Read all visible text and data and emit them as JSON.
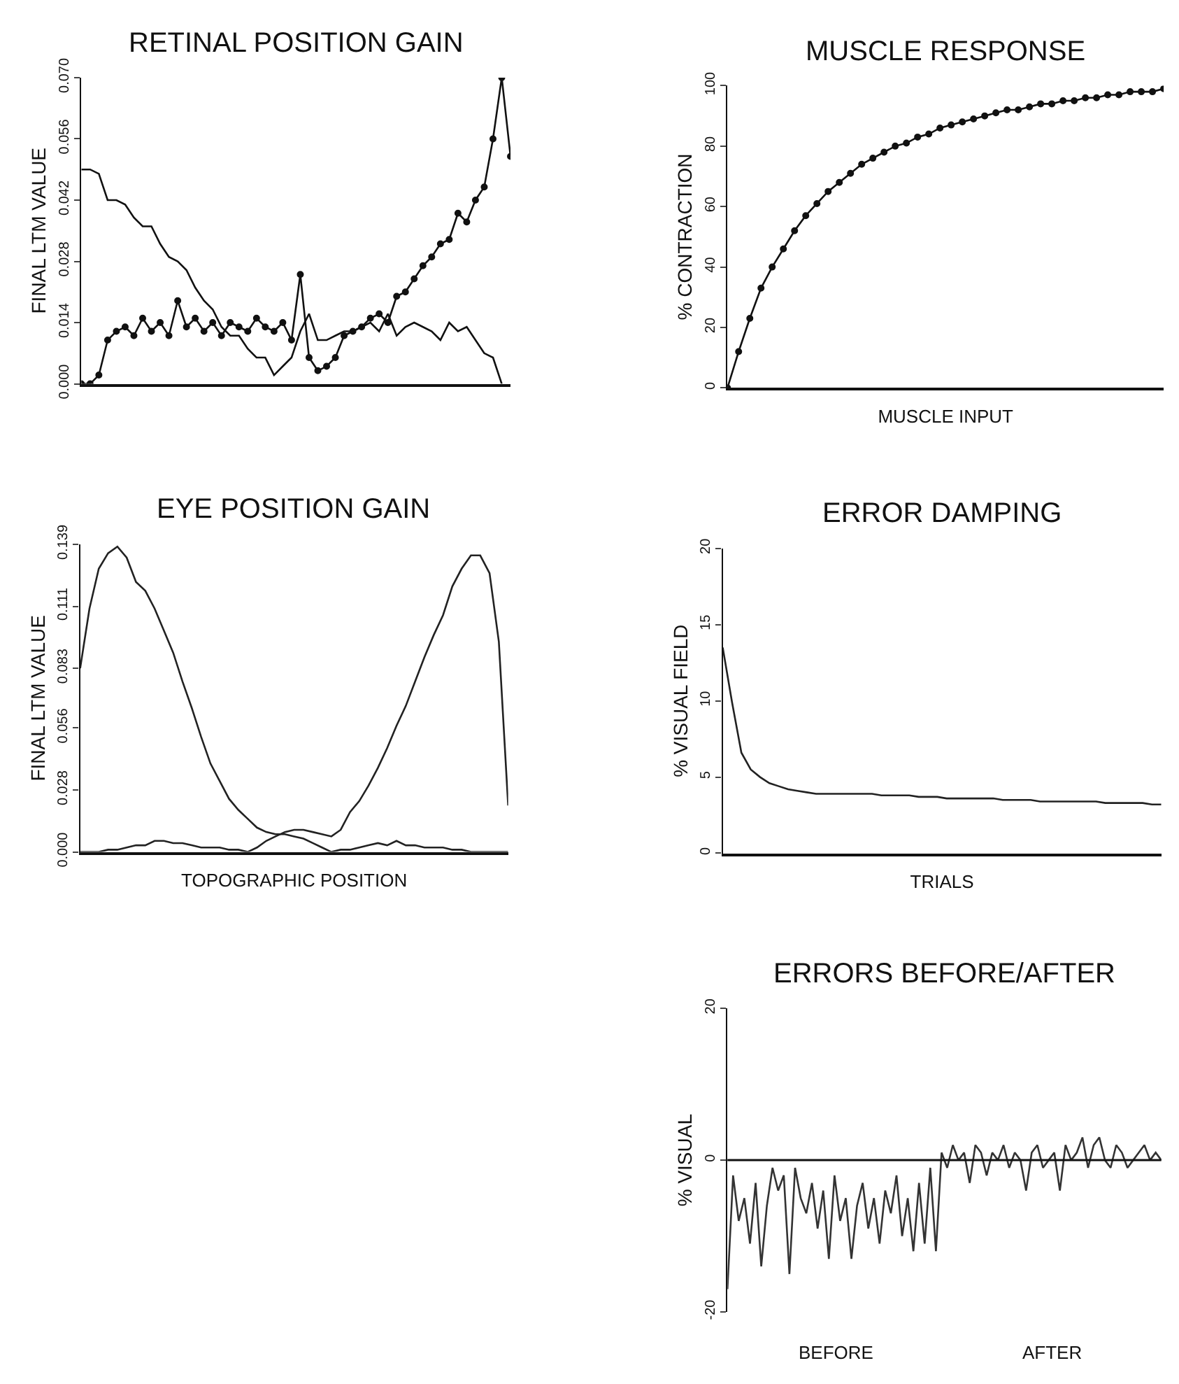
{
  "chart_data": [
    {
      "type": "line",
      "title": "RETINAL POSITION GAIN",
      "ylabel": "FINAL LTM VALUE",
      "tick_labels": "y",
      "categories": [
        null,
        null,
        null,
        null,
        null,
        null,
        null,
        null,
        null,
        null,
        null,
        null,
        null,
        null,
        null,
        null,
        null,
        null,
        null,
        null,
        null,
        null,
        null,
        null,
        null,
        null,
        null,
        null,
        null,
        null,
        null,
        null,
        null,
        null,
        null,
        null,
        null,
        null,
        null,
        null,
        null,
        null,
        null,
        null,
        null,
        null,
        null,
        null,
        null,
        null
      ],
      "ylim": [
        0,
        0.07
      ],
      "yticks": [
        {
          "value": 0,
          "label": "0.000"
        },
        {
          "value": 0.014,
          "label": "0.014"
        },
        {
          "value": 0.028,
          "label": "0.028"
        },
        {
          "value": 0.042,
          "label": "0.042"
        },
        {
          "value": 0.056,
          "label": "0.056"
        },
        {
          "value": 0.07,
          "label": "0.070"
        }
      ],
      "series": [
        {
          "color": "#111111",
          "marker": "circle",
          "values": [
            0.0,
            0.0,
            0.002,
            0.01,
            0.012,
            0.013,
            0.011,
            0.015,
            0.012,
            0.014,
            0.011,
            0.019,
            0.013,
            0.015,
            0.012,
            0.014,
            0.011,
            0.014,
            0.013,
            0.012,
            0.015,
            0.013,
            0.012,
            0.014,
            0.01,
            0.025,
            0.006,
            0.003,
            0.004,
            0.006,
            0.011,
            0.012,
            0.013,
            0.015,
            0.016,
            0.014,
            0.02,
            0.021,
            0.024,
            0.027,
            0.029,
            0.032,
            0.033,
            0.039,
            0.037,
            0.042,
            0.045,
            0.056,
            0.07,
            0.052
          ]
        },
        {
          "color": "#111111",
          "marker": "none",
          "values": [
            0.049,
            0.049,
            0.048,
            0.042,
            0.042,
            0.041,
            0.038,
            0.036,
            0.036,
            0.032,
            0.029,
            0.028,
            0.026,
            0.022,
            0.019,
            0.017,
            0.013,
            0.011,
            0.011,
            0.008,
            0.006,
            0.006,
            0.002,
            0.004,
            0.006,
            0.012,
            0.016,
            0.01,
            0.01,
            0.011,
            0.012,
            0.012,
            0.013,
            0.014,
            0.012,
            0.016,
            0.011,
            0.013,
            0.014,
            0.013,
            0.012,
            0.01,
            0.014,
            0.012,
            0.013,
            0.01,
            0.007,
            0.006,
            0.0,
            null
          ]
        }
      ]
    },
    {
      "type": "line",
      "title": "MUSCLE RESPONSE",
      "xlabel": "MUSCLE INPUT",
      "ylabel": "% CONTRACTION",
      "tick_labels": "y",
      "categories": [
        null,
        null,
        null,
        null,
        null,
        null,
        null,
        null,
        null,
        null,
        null,
        null,
        null,
        null,
        null,
        null,
        null,
        null,
        null,
        null,
        null,
        null,
        null,
        null,
        null,
        null,
        null,
        null,
        null,
        null,
        null,
        null,
        null,
        null,
        null,
        null,
        null,
        null,
        null,
        null
      ],
      "ylim": [
        0,
        100
      ],
      "yticks": [
        0,
        20,
        40,
        60,
        80,
        100
      ],
      "series": [
        {
          "color": "#111111",
          "marker": "circle",
          "values": [
            0,
            12,
            23,
            33,
            40,
            46,
            52,
            57,
            61,
            65,
            68,
            71,
            74,
            76,
            78,
            80,
            81,
            83,
            84,
            86,
            87,
            88,
            89,
            90,
            91,
            92,
            92,
            93,
            94,
            94,
            95,
            95,
            96,
            96,
            97,
            97,
            98,
            98,
            98,
            99
          ]
        }
      ]
    },
    {
      "type": "line",
      "title": "EYE POSITION GAIN",
      "xlabel": "TOPOGRAPHIC POSITION",
      "ylabel": "FINAL LTM VALUE",
      "tick_labels": "y",
      "categories": [
        null,
        null,
        null,
        null,
        null,
        null,
        null,
        null,
        null,
        null,
        null,
        null,
        null,
        null,
        null,
        null,
        null,
        null,
        null,
        null,
        null,
        null,
        null,
        null,
        null,
        null,
        null,
        null,
        null,
        null,
        null,
        null,
        null,
        null,
        null,
        null,
        null,
        null,
        null,
        null,
        null,
        null,
        null,
        null,
        null,
        null,
        null
      ],
      "ylim": [
        0,
        0.139
      ],
      "yticks": [
        {
          "value": 0,
          "label": "0.000"
        },
        {
          "value": 0.028,
          "label": "0.028"
        },
        {
          "value": 0.056,
          "label": "0.056"
        },
        {
          "value": 0.083,
          "label": "0.083"
        },
        {
          "value": 0.111,
          "label": "0.111"
        },
        {
          "value": 0.139,
          "label": "0.139"
        }
      ],
      "series": [
        {
          "color": "#222222",
          "marker": "none",
          "values": [
            0.083,
            0.11,
            0.128,
            0.135,
            0.138,
            0.133,
            0.122,
            0.118,
            0.11,
            0.1,
            0.09,
            0.077,
            0.065,
            0.052,
            0.04,
            0.032,
            0.024,
            0.019,
            0.015,
            0.011,
            0.009,
            0.008,
            0.008,
            0.007,
            0.006,
            0.004,
            0.002,
            0.0,
            0.001,
            0.001,
            0.002,
            0.003,
            0.004,
            0.003,
            0.005,
            0.003,
            0.003,
            0.002,
            0.002,
            0.002,
            0.001,
            0.001,
            0.0,
            0.0,
            0.0,
            0.0,
            0.0
          ]
        },
        {
          "color": "#222222",
          "marker": "none",
          "values": [
            0.0,
            0.0,
            0.0,
            0.001,
            0.001,
            0.002,
            0.003,
            0.003,
            0.005,
            0.005,
            0.004,
            0.004,
            0.003,
            0.002,
            0.002,
            0.002,
            0.001,
            0.001,
            0.0,
            0.002,
            0.005,
            0.007,
            0.009,
            0.01,
            0.01,
            0.009,
            0.008,
            0.007,
            0.01,
            0.018,
            0.023,
            0.03,
            0.038,
            0.047,
            0.057,
            0.066,
            0.077,
            0.088,
            0.098,
            0.107,
            0.12,
            0.128,
            0.134,
            0.134,
            0.126,
            0.095,
            0.021
          ]
        }
      ]
    },
    {
      "type": "line",
      "title": "ERROR DAMPING",
      "xlabel": "TRIALS",
      "ylabel": "% VISUAL FIELD",
      "tick_labels": "y",
      "categories": [
        null,
        null,
        null,
        null,
        null,
        null,
        null,
        null,
        null,
        null,
        null,
        null,
        null,
        null,
        null,
        null,
        null,
        null,
        null,
        null,
        null,
        null,
        null,
        null,
        null,
        null,
        null,
        null,
        null,
        null,
        null,
        null,
        null,
        null,
        null,
        null,
        null,
        null,
        null,
        null,
        null,
        null,
        null,
        null,
        null,
        null,
        null,
        null
      ],
      "ylim": [
        0,
        20
      ],
      "yticks": [
        0,
        5,
        10,
        15,
        20
      ],
      "series": [
        {
          "color": "#222222",
          "marker": "none",
          "values": [
            13.5,
            9.9,
            6.6,
            5.5,
            5.0,
            4.6,
            4.4,
            4.2,
            4.1,
            4.0,
            3.9,
            3.9,
            3.9,
            3.9,
            3.9,
            3.9,
            3.9,
            3.8,
            3.8,
            3.8,
            3.8,
            3.7,
            3.7,
            3.7,
            3.6,
            3.6,
            3.6,
            3.6,
            3.6,
            3.6,
            3.5,
            3.5,
            3.5,
            3.5,
            3.4,
            3.4,
            3.4,
            3.4,
            3.4,
            3.4,
            3.4,
            3.3,
            3.3,
            3.3,
            3.3,
            3.3,
            3.2,
            3.2
          ]
        }
      ]
    },
    {
      "type": "line",
      "title": "ERRORS BEFORE/AFTER",
      "ylabel": "% VISUAL",
      "tick_labels": "y",
      "annotations": [
        "BEFORE",
        "AFTER"
      ],
      "ref_lines": [
        {
          "axis": "y",
          "value": 0,
          "color": "#111111"
        }
      ],
      "categories": [
        null,
        null,
        null,
        null,
        null,
        null,
        null,
        null,
        null,
        null,
        null,
        null,
        null,
        null,
        null,
        null,
        null,
        null,
        null,
        null,
        null,
        null,
        null,
        null,
        null,
        null,
        null,
        null,
        null,
        null,
        null,
        null,
        null,
        null,
        null,
        null,
        null,
        null,
        null,
        null,
        null,
        null,
        null,
        null,
        null,
        null,
        null,
        null,
        null,
        null,
        null,
        null,
        null,
        null,
        null,
        null,
        null,
        null,
        null,
        null,
        null,
        null,
        null,
        null,
        null,
        null,
        null,
        null,
        null,
        null,
        null,
        null,
        null,
        null,
        null,
        null,
        null,
        null
      ],
      "ylim": [
        -20,
        20
      ],
      "yticks": [
        -20,
        0,
        20
      ],
      "series": [
        {
          "color": "#333333",
          "marker": "none",
          "values": [
            -17,
            -2,
            -8,
            -5,
            -11,
            -3,
            -14,
            -6,
            -1,
            -4,
            -2,
            -15,
            -1,
            -5,
            -7,
            -3,
            -9,
            -4,
            -13,
            -2,
            -8,
            -5,
            -13,
            -6,
            -3,
            -9,
            -5,
            -11,
            -4,
            -7,
            -2,
            -10,
            -5,
            -12,
            -3,
            -11,
            -1,
            -12,
            1,
            -1,
            2,
            0,
            1,
            -3,
            2,
            1,
            -2,
            1,
            0,
            2,
            -1,
            1,
            0,
            -4,
            1,
            2,
            -1,
            0,
            1,
            -4,
            2,
            0,
            1,
            3,
            -1,
            2,
            3,
            0,
            -1,
            2,
            1,
            -1,
            0,
            1,
            2,
            0,
            1,
            0
          ]
        }
      ]
    }
  ]
}
